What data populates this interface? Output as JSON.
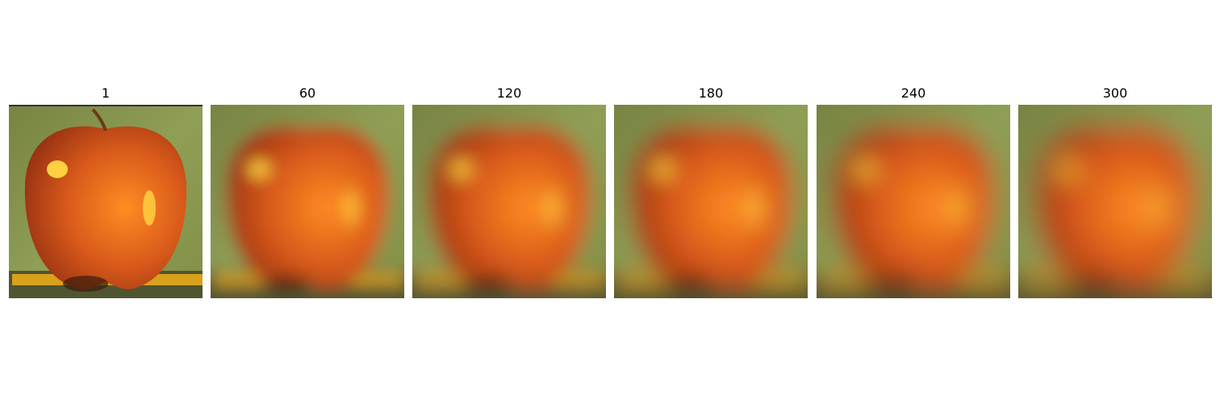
{
  "figure": {
    "panels": [
      {
        "title": "1",
        "blur": 0
      },
      {
        "title": "60",
        "blur": 60
      },
      {
        "title": "120",
        "blur": 120
      },
      {
        "title": "180",
        "blur": 180
      },
      {
        "title": "240",
        "blur": 240
      },
      {
        "title": "300",
        "blur": 300
      }
    ]
  },
  "colors": {
    "background": "#8f9f55",
    "apple_body": "#d95a1b",
    "apple_shadow": "#9a3312",
    "apple_highlight": "#ffd040",
    "apple_bright_side": "#ff8c22",
    "floor": "#4f5431",
    "pencil": "#d7a11b",
    "stem": "#6b3a16"
  },
  "subject": "apple-photo"
}
